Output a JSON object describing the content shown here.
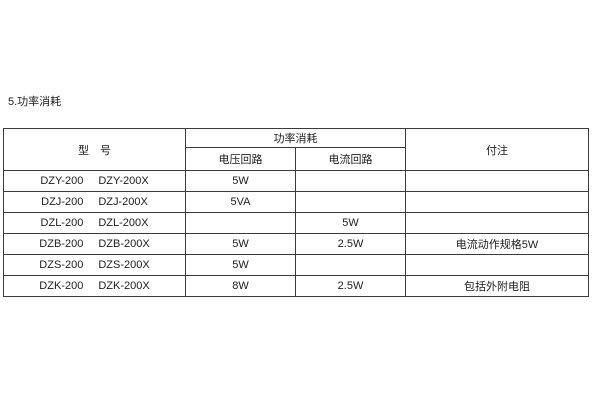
{
  "title": "5.功率消耗",
  "colors": {
    "background": "#ffffff",
    "border": "#3b3b3b",
    "text": "#1c1c1c"
  },
  "table": {
    "header": {
      "model": "型　号",
      "power_group": "功率消耗",
      "voltage_circuit": "电压回路",
      "current_circuit": "电流回路",
      "notes": "付注"
    },
    "rows": [
      {
        "model_a": "DZY-200",
        "model_b": "DZY-200X",
        "voltage": "5W",
        "current": "",
        "note": ""
      },
      {
        "model_a": "DZJ-200",
        "model_b": "DZJ-200X",
        "voltage": "5VA",
        "current": "",
        "note": ""
      },
      {
        "model_a": "DZL-200",
        "model_b": "DZL-200X",
        "voltage": "",
        "current": "5W",
        "note": ""
      },
      {
        "model_a": "DZB-200",
        "model_b": "DZB-200X",
        "voltage": "5W",
        "current": "2.5W",
        "note": "电流动作规格5W"
      },
      {
        "model_a": "DZS-200",
        "model_b": "DZS-200X",
        "voltage": "5W",
        "current": "",
        "note": ""
      },
      {
        "model_a": "DZK-200",
        "model_b": "DZK-200X",
        "voltage": "8W",
        "current": "2.5W",
        "note": "包括外附电阻"
      }
    ]
  }
}
